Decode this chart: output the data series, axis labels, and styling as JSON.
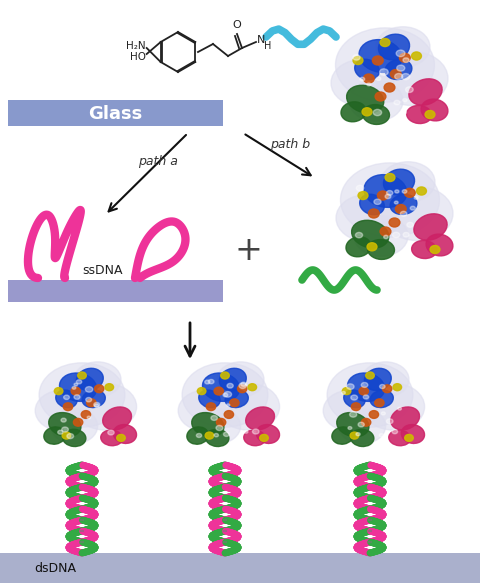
{
  "background_color": "#ffffff",
  "glass_color": "#8899cc",
  "glass_label": "Glass",
  "glass_label_color": "#ffffff",
  "path_a_label": "path a",
  "path_b_label": "path b",
  "ssDNA_label": "ssDNA",
  "dsDNA_label": "dsDNA",
  "arrow_color": "#111111",
  "surface_color_top": "#9999cc",
  "surface_color_bottom": "#aab0cc",
  "dna_pink": "#ee3399",
  "dna_green": "#33aa44",
  "dna_cyan": "#44bbdd",
  "protein_blue": "#1144cc",
  "protein_green": "#226622",
  "protein_pink": "#cc2266",
  "protein_orange": "#cc5511",
  "protein_yellow": "#ccbb00",
  "protein_light": "#aaaaee",
  "chem_color": "#222222",
  "plus_color": "#444444",
  "figsize": [
    4.8,
    5.83
  ],
  "dpi": 100
}
